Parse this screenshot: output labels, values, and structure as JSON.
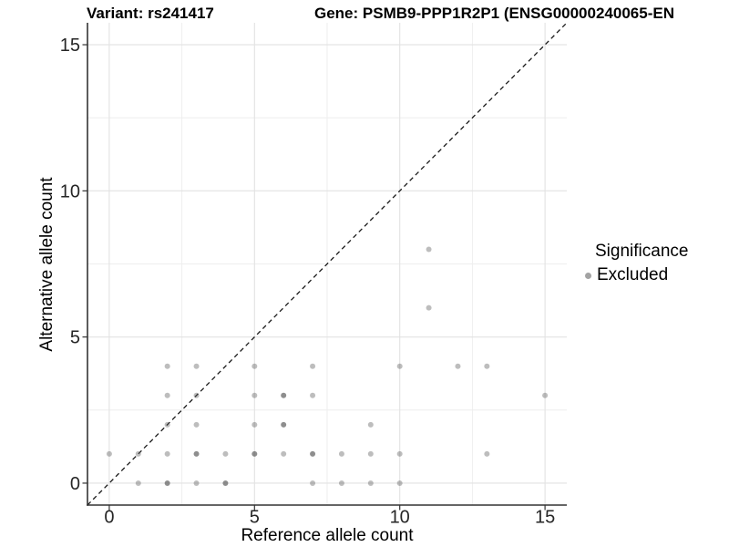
{
  "header": {
    "variant_title": "Variant: rs241417",
    "gene_title": "Gene: PSMB9-PPP1R2P1 (ENSG00000240065-EN"
  },
  "legend": {
    "title": "Significance",
    "items": [
      {
        "label": "Excluded",
        "color": "#a3a3a3"
      }
    ]
  },
  "chart_data": {
    "type": "scatter",
    "title": "Variant: rs241417",
    "subtitle": "Gene: PSMB9-PPP1R2P1 (ENSG00000240065-EN",
    "xlabel": "Reference allele count",
    "ylabel": "Alternative allele count",
    "xlim": [
      -0.75,
      15.75
    ],
    "ylim": [
      -0.75,
      15.75
    ],
    "x_ticks": [
      0,
      5,
      10,
      15
    ],
    "y_ticks": [
      0,
      5,
      10,
      15
    ],
    "x_minor_ticks": [
      2.5,
      7.5,
      12.5
    ],
    "y_minor_ticks": [
      2.5,
      7.5,
      12.5
    ],
    "grid": "major+minor",
    "legend_position": "right",
    "identity_line": {
      "style": "dashed",
      "slope": 1,
      "intercept": 0
    },
    "point_encoding": "x, y, overplot_count (2 = darker dot)",
    "series": [
      {
        "name": "Excluded",
        "color": "#595959",
        "points": [
          [
            0,
            1,
            1
          ],
          [
            1,
            0,
            1
          ],
          [
            1,
            1,
            1
          ],
          [
            2,
            0,
            2
          ],
          [
            2,
            1,
            1
          ],
          [
            2,
            2,
            1
          ],
          [
            2,
            3,
            1
          ],
          [
            2,
            4,
            1
          ],
          [
            3,
            0,
            1
          ],
          [
            3,
            1,
            2
          ],
          [
            3,
            2,
            1
          ],
          [
            3,
            3,
            1
          ],
          [
            3,
            4,
            1
          ],
          [
            4,
            0,
            2
          ],
          [
            4,
            1,
            1
          ],
          [
            5,
            1,
            2
          ],
          [
            5,
            2,
            1
          ],
          [
            5,
            3,
            1
          ],
          [
            5,
            4,
            1
          ],
          [
            6,
            1,
            1
          ],
          [
            6,
            2,
            2
          ],
          [
            6,
            3,
            2
          ],
          [
            7,
            0,
            1
          ],
          [
            7,
            1,
            2
          ],
          [
            7,
            3,
            1
          ],
          [
            7,
            4,
            1
          ],
          [
            8,
            0,
            1
          ],
          [
            8,
            1,
            1
          ],
          [
            9,
            0,
            1
          ],
          [
            9,
            1,
            1
          ],
          [
            9,
            2,
            1
          ],
          [
            10,
            0,
            1
          ],
          [
            10,
            1,
            1
          ],
          [
            10,
            4,
            1
          ],
          [
            11,
            6,
            1
          ],
          [
            11,
            8,
            1
          ],
          [
            12,
            4,
            1
          ],
          [
            13,
            1,
            1
          ],
          [
            13,
            4,
            1
          ],
          [
            15,
            3,
            1
          ]
        ]
      }
    ]
  },
  "style": {
    "background": "#ffffff",
    "grid_major_color": "#e2e2e2",
    "grid_minor_color": "#eeeeee",
    "axis_line_color": "#333333",
    "tick_label_color": "#262626",
    "dashed_line_color": "#1a1a1a",
    "alpha_single": 0.4,
    "alpha_double": 0.68,
    "point_radius": 3
  }
}
